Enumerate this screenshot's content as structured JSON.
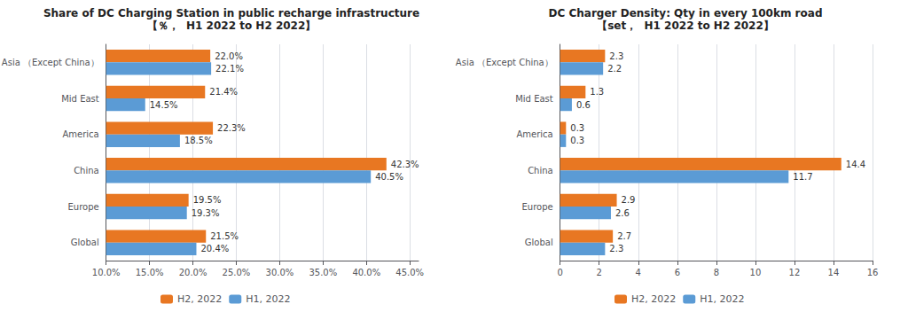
{
  "chart_data": [
    {
      "type": "bar",
      "orientation": "horizontal",
      "title": "Share of DC Charging Station in public recharge infrastructure",
      "subtitle": "【％，  H1 2022 to H2 2022】",
      "categories": [
        "Global",
        "Europe",
        "China",
        "America",
        "Mid East",
        "Asia （Except China）"
      ],
      "series": [
        {
          "name": "H2, 2022",
          "color": "#E87722",
          "values": [
            21.5,
            19.5,
            42.3,
            22.3,
            21.4,
            22.0
          ],
          "value_labels": [
            "21.5%",
            "19.5%",
            "42.3%",
            "22.3%",
            "21.4%",
            "22.0%"
          ]
        },
        {
          "name": "H1, 2022",
          "color": "#5B9BD5",
          "values": [
            20.4,
            19.3,
            40.5,
            18.5,
            14.5,
            22.1
          ],
          "value_labels": [
            "20.4%",
            "19.3%",
            "40.5%",
            "18.5%",
            "14.5%",
            "22.1%"
          ]
        }
      ],
      "xlim": [
        10.0,
        46.0
      ],
      "xticks": [
        {
          "value": 10.0,
          "label": "10.0%"
        },
        {
          "value": 15.0,
          "label": "15.0%"
        },
        {
          "value": 20.0,
          "label": "20.0%"
        },
        {
          "value": 25.0,
          "label": "25.0%"
        },
        {
          "value": 30.0,
          "label": "30.0%"
        },
        {
          "value": 35.0,
          "label": "35.0%"
        },
        {
          "value": 40.0,
          "label": "40.0%"
        },
        {
          "value": 45.0,
          "label": "45.0%"
        }
      ],
      "grid": true,
      "legend": "bottom",
      "data_labels": true
    },
    {
      "type": "bar",
      "orientation": "horizontal",
      "title": "DC Charger Density: Qty in every 100km road",
      "subtitle": "【set，  H1 2022 to H2 2022】",
      "categories": [
        "Global",
        "Europe",
        "China",
        "America",
        "Mid East",
        "Asia （Except China）"
      ],
      "series": [
        {
          "name": "H2, 2022",
          "color": "#E87722",
          "values": [
            2.7,
            2.9,
            14.4,
            0.3,
            1.3,
            2.3
          ]
        },
        {
          "name": "H1, 2022",
          "color": "#5B9BD5",
          "values": [
            2.3,
            2.6,
            11.7,
            0.3,
            0.6,
            2.2
          ]
        }
      ],
      "xlim": [
        0,
        16
      ],
      "xticks": [
        0,
        2,
        4,
        6,
        8,
        10,
        12,
        14,
        16
      ],
      "grid": true,
      "legend": "bottom",
      "data_labels": true
    }
  ]
}
